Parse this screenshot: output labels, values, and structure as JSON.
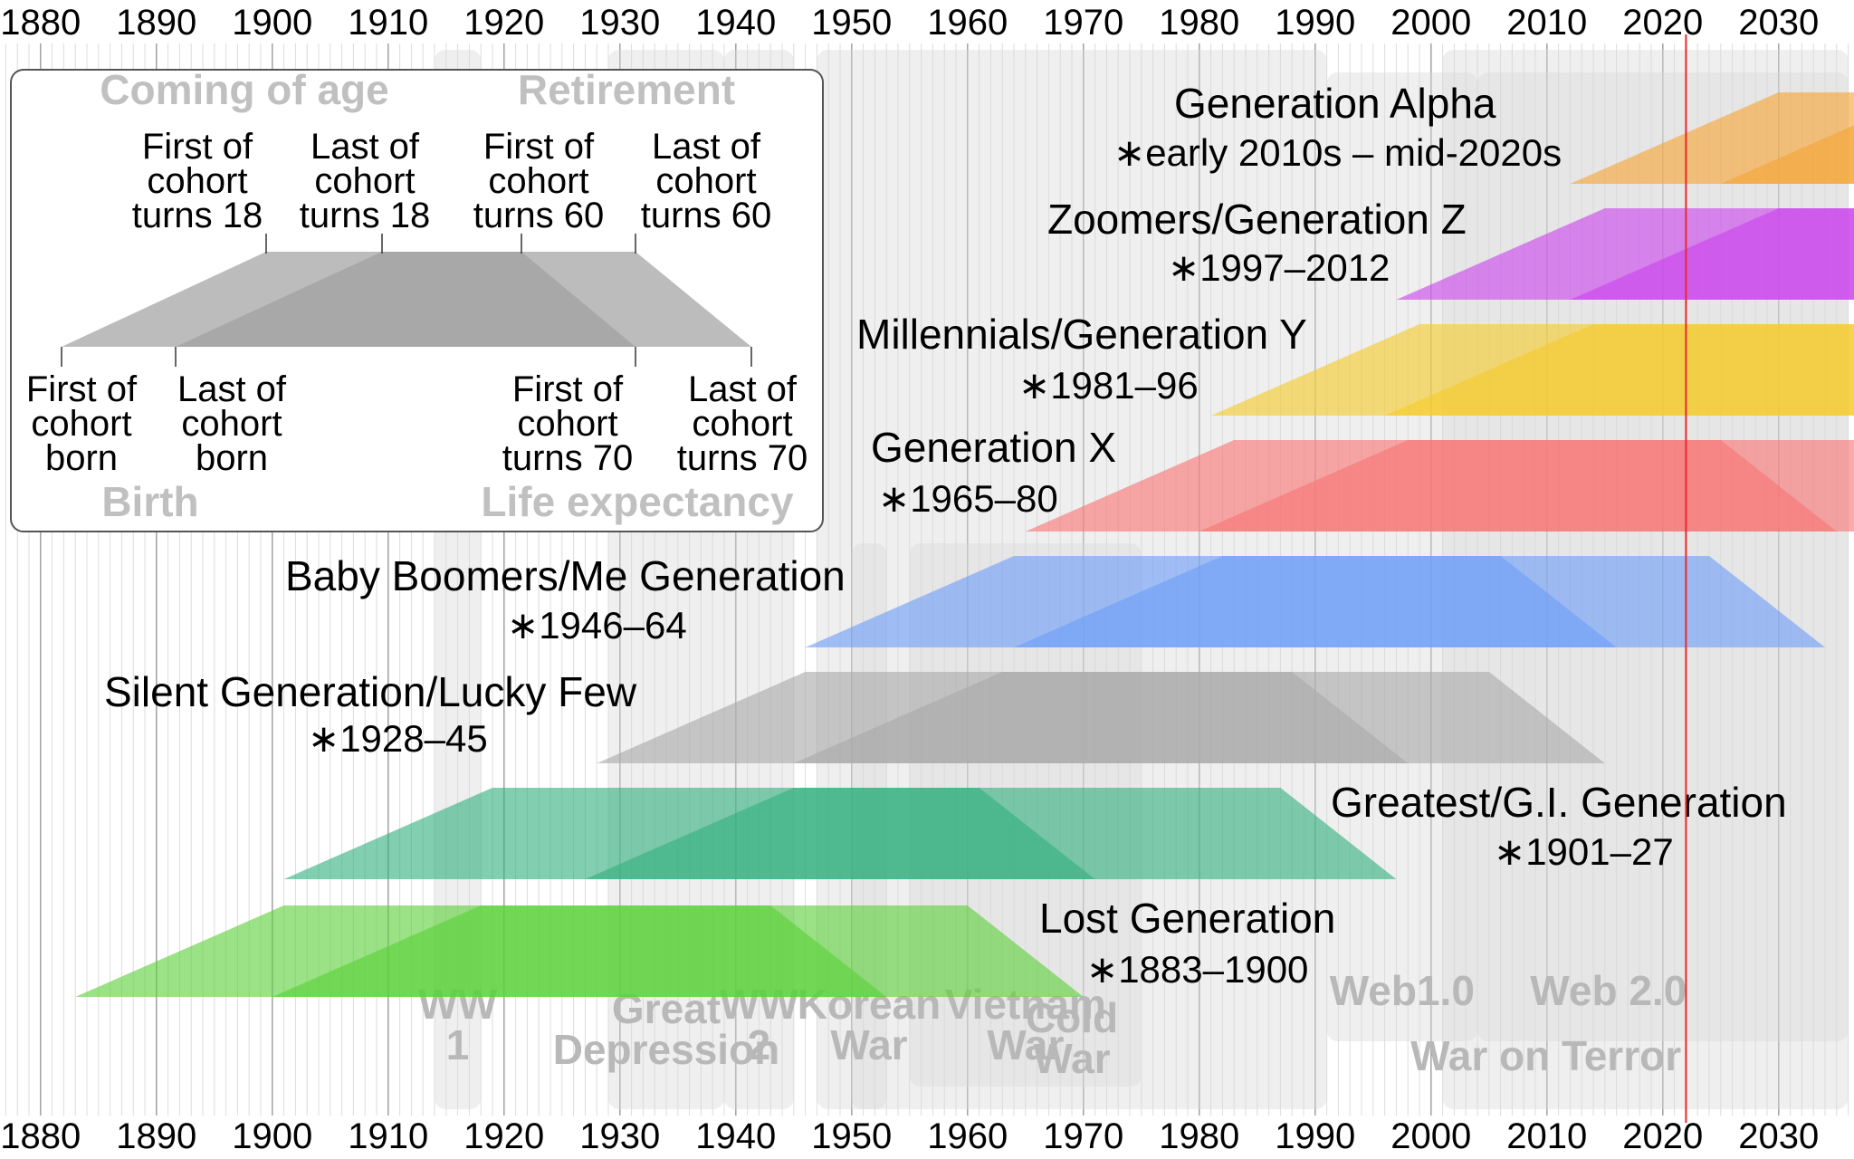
{
  "axis": {
    "year_min": 1876.5,
    "year_max": 2036.5,
    "tick_years": [
      1880,
      1890,
      1900,
      1910,
      1920,
      1930,
      1940,
      1950,
      1960,
      1970,
      1980,
      1990,
      2000,
      2010,
      2020,
      2030
    ],
    "current_year": 2022
  },
  "colors": {
    "current_year_line": "#e8292c",
    "event_shade": "#d9d9d9",
    "event_label": "#b8b8b8",
    "legend_shape": "#bcbcbc",
    "legend_overlap": "#a8a8a8",
    "legend_heading": "#c0c0c0"
  },
  "events": [
    {
      "name": "WW 1",
      "label": [
        "WW",
        "1"
      ],
      "start": 1914,
      "end": 1918
    },
    {
      "name": "Great Depression",
      "label": [
        "Great",
        "Depression"
      ],
      "start": 1929,
      "end": 1939
    },
    {
      "name": "WW 2",
      "label": [
        "WW",
        "2"
      ],
      "start": 1939,
      "end": 1945
    },
    {
      "name": "Korean War",
      "label": [
        "Korean",
        "War"
      ],
      "start": 1950,
      "end": 1953
    },
    {
      "name": "Vietnam War",
      "label": [
        "Vietnam",
        "War"
      ],
      "start": 1955,
      "end": 1975
    },
    {
      "name": "Cold War",
      "label": [
        "Cold",
        "War"
      ],
      "start": 1947,
      "end": 1991
    },
    {
      "name": "Web 1.0",
      "label": [
        "Web1.0"
      ],
      "start": 1991,
      "end": 2004
    },
    {
      "name": "Web 2.0",
      "label": [
        "Web 2.0"
      ],
      "start": 2004,
      "end": 2036
    },
    {
      "name": "War on Terror",
      "label": [
        "War on Terror"
      ],
      "start": 2001,
      "end": 2036
    }
  ],
  "generations": [
    {
      "name": "Lost Generation",
      "dates": "∗1883–1900",
      "first_born": 1883,
      "last_born": 1900,
      "color": "#5cd13a"
    },
    {
      "name": "Greatest/G.I. Generation",
      "dates": "∗1901–27",
      "first_born": 1901,
      "last_born": 1927,
      "color": "#33b07f"
    },
    {
      "name": "Silent Generation/Lucky Few",
      "dates": "∗1928–45",
      "first_born": 1928,
      "last_born": 1945,
      "color": "#a9a9a9"
    },
    {
      "name": "Baby Boomers/Me Generation",
      "dates": "∗1946–64",
      "first_born": 1946,
      "last_born": 1964,
      "color": "#6d9ef7"
    },
    {
      "name": "Generation X",
      "dates": "∗1965–80",
      "first_born": 1965,
      "last_born": 1980,
      "color": "#f87474"
    },
    {
      "name": "Millennials/Generation Y",
      "dates": "∗1981–96",
      "first_born": 1981,
      "last_born": 1996,
      "color": "#f5cb2c"
    },
    {
      "name": "Zoomers/Generation Z",
      "dates": "∗1997–2012",
      "first_born": 1997,
      "last_born": 2012,
      "color": "#cc44ee"
    },
    {
      "name": "Generation Alpha",
      "dates": "∗early 2010s – mid-2020s",
      "first_born": 2012,
      "last_born": 2025,
      "color": "#f5a536"
    }
  ],
  "legend": {
    "heading_top_left": "Coming of age",
    "heading_top_right": "Retirement",
    "heading_bottom_left": "Birth",
    "heading_bottom_right": "Life expectancy",
    "top_labels": [
      [
        "First of",
        "cohort",
        "turns 18"
      ],
      [
        "Last of",
        "cohort",
        "turns 18"
      ],
      [
        "First of",
        "cohort",
        "turns 60"
      ],
      [
        "Last of",
        "cohort",
        "turns 60"
      ]
    ],
    "bottom_labels": [
      [
        "First of",
        "cohort",
        "born"
      ],
      [
        "Last of",
        "cohort",
        "born"
      ],
      [
        "First of",
        "cohort",
        "turns 70"
      ],
      [
        "Last of",
        "cohort",
        "turns 70"
      ]
    ]
  }
}
